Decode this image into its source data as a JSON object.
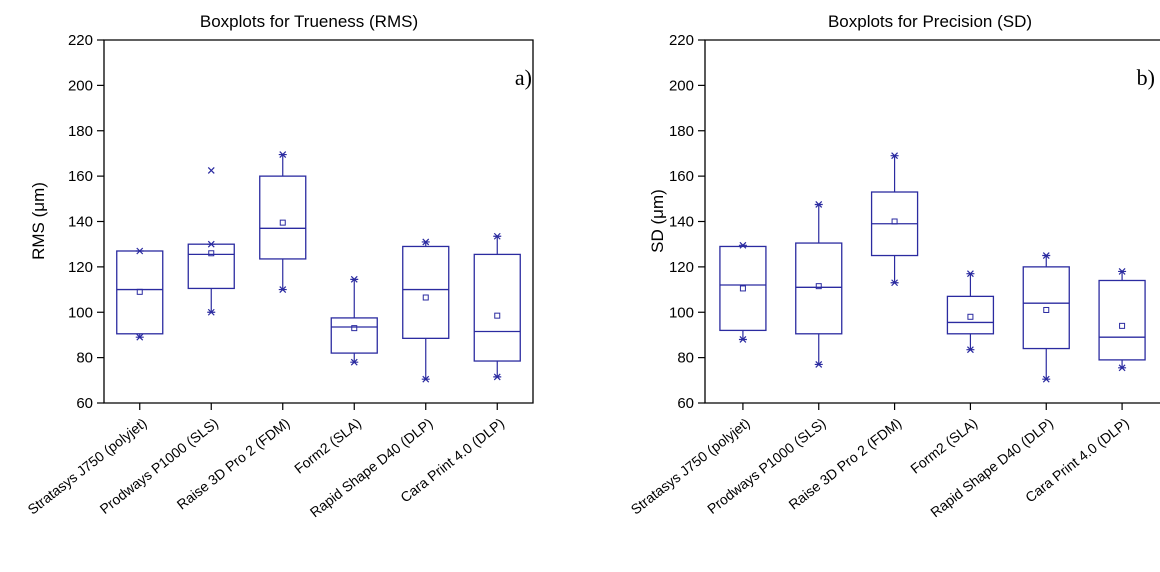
{
  "chart_data": [
    {
      "type": "boxplot",
      "title": "Boxplots for Trueness (RMS)",
      "ylabel": "RMS (μm)",
      "panel_label": "a)",
      "ylim": [
        60,
        220
      ],
      "yticks": [
        "60",
        "80",
        "100",
        "120",
        "140",
        "160",
        "180",
        "200",
        "220"
      ],
      "categories": [
        "Stratasys J750 (polyjet)",
        "Prodways P1000 (SLS)",
        "Raise 3D Pro 2 (FDM)",
        "Form2 (SLA)",
        "Rapid Shape D40 (DLP)",
        "Cara Print 4.0 (DLP)"
      ],
      "boxes": [
        {
          "min": 89,
          "q1": 90.5,
          "median": 110,
          "q3": 127,
          "max": 127,
          "mean": 109,
          "outliers": []
        },
        {
          "min": 100,
          "q1": 110.5,
          "median": 125.5,
          "q3": 130,
          "max": 130,
          "mean": 126,
          "outliers": [
            162.5
          ]
        },
        {
          "min": 110,
          "q1": 123.5,
          "median": 137,
          "q3": 160,
          "max": 169.5,
          "mean": 139.5,
          "outliers": []
        },
        {
          "min": 78,
          "q1": 82,
          "median": 93.5,
          "q3": 97.5,
          "max": 114.5,
          "mean": 93,
          "outliers": []
        },
        {
          "min": 70.5,
          "q1": 88.5,
          "median": 110,
          "q3": 129,
          "max": 131,
          "mean": 106.5,
          "outliers": []
        },
        {
          "min": 71.5,
          "q1": 78.5,
          "median": 91.5,
          "q3": 125.5,
          "max": 133.5,
          "mean": 98.5,
          "outliers": []
        }
      ],
      "color": "#2b2ba0"
    },
    {
      "type": "boxplot",
      "title": "Boxplots for Precision (SD)",
      "ylabel": "SD (μm)",
      "panel_label": "b)",
      "ylim": [
        60,
        220
      ],
      "yticks": [
        "60",
        "80",
        "100",
        "120",
        "140",
        "160",
        "180",
        "200",
        "220"
      ],
      "categories": [
        "Stratasys J750 (polyjet)",
        "Prodways P1000 (SLS)",
        "Raise 3D Pro 2 (FDM)",
        "Form2 (SLA)",
        "Rapid Shape D40 (DLP)",
        "Cara Print 4.0 (DLP)"
      ],
      "boxes": [
        {
          "min": 88,
          "q1": 92,
          "median": 112,
          "q3": 129,
          "max": 129.5,
          "mean": 110.5,
          "outliers": []
        },
        {
          "min": 77,
          "q1": 90.5,
          "median": 111,
          "q3": 130.5,
          "max": 147.5,
          "mean": 111.5,
          "outliers": []
        },
        {
          "min": 113,
          "q1": 125,
          "median": 139,
          "q3": 153,
          "max": 169,
          "mean": 140,
          "outliers": []
        },
        {
          "min": 83.5,
          "q1": 90.5,
          "median": 95.5,
          "q3": 107,
          "max": 117,
          "mean": 98,
          "outliers": []
        },
        {
          "min": 70.5,
          "q1": 84,
          "median": 104,
          "q3": 120,
          "max": 125,
          "mean": 101,
          "outliers": []
        },
        {
          "min": 75.5,
          "q1": 79,
          "median": 89,
          "q3": 114,
          "max": 118,
          "mean": 94,
          "outliers": []
        }
      ],
      "color": "#2b2ba0"
    }
  ]
}
